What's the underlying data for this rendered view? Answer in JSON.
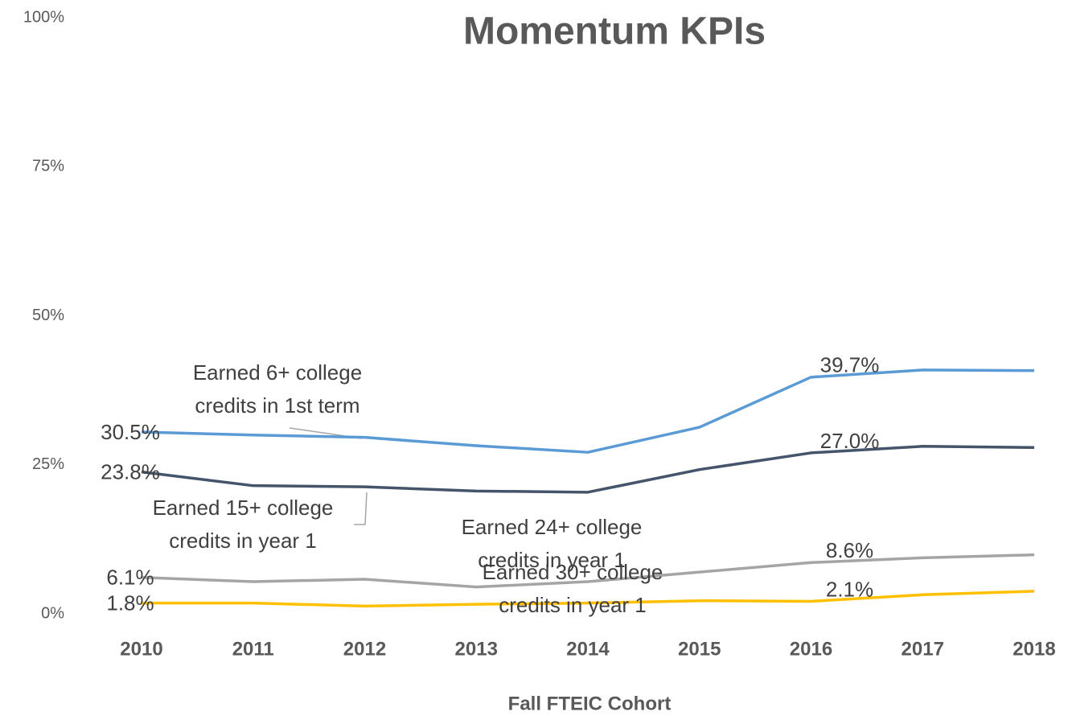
{
  "chart_data": {
    "type": "line",
    "title": "Momentum KPIs",
    "x_label": "Fall FTEIC Cohort",
    "categories": [
      "2010",
      "2011",
      "2012",
      "2013",
      "2014",
      "2015",
      "2016",
      "2017",
      "2018"
    ],
    "ylim": [
      0,
      100
    ],
    "yticks": [
      {
        "value": 0,
        "label": "0%"
      },
      {
        "value": 25,
        "label": "25%"
      },
      {
        "value": 50,
        "label": "50%"
      },
      {
        "value": 75,
        "label": "75%"
      },
      {
        "value": 100,
        "label": "100%"
      }
    ],
    "grid": false,
    "series": [
      {
        "name": "Earned 6+ college credits in 1st term",
        "color": "#5b9bd5",
        "values": [
          30.5,
          30.0,
          29.6,
          28.2,
          27.1,
          31.3,
          39.7,
          40.9,
          40.8
        ],
        "value_labels": [
          "30.5%",
          null,
          null,
          null,
          null,
          null,
          "39.7%",
          null,
          null
        ]
      },
      {
        "name": "Earned 15+ college credits in year 1",
        "color": "#44546a",
        "values": [
          23.8,
          21.5,
          21.3,
          20.6,
          20.4,
          24.2,
          27.0,
          28.1,
          27.9
        ],
        "value_labels": [
          "23.8%",
          null,
          null,
          null,
          null,
          null,
          "27.0%",
          null,
          null
        ]
      },
      {
        "name": "Earned 24+ college credits in year 1",
        "color": "#a5a5a5",
        "values": [
          6.1,
          5.4,
          5.8,
          4.5,
          5.4,
          7.0,
          8.6,
          9.4,
          9.9
        ],
        "value_labels": [
          "6.1%",
          null,
          null,
          null,
          null,
          null,
          "8.6%",
          null,
          null
        ]
      },
      {
        "name": "Earned 30+ college credits in year 1",
        "color": "#ffc000",
        "values": [
          1.8,
          1.8,
          1.3,
          1.6,
          1.8,
          2.2,
          2.1,
          3.2,
          3.8
        ],
        "value_labels": [
          "1.8%",
          null,
          null,
          null,
          null,
          null,
          "2.1%",
          null,
          null
        ]
      }
    ]
  }
}
